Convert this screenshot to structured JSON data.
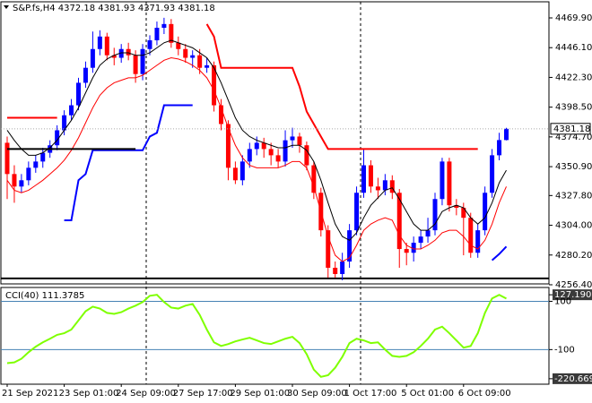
{
  "chart_data": {
    "type": "candlestick",
    "title": "S&P.fs,H4  4372.18 4381.93 4371.93 4381.18",
    "categories": [
      "21 Sep 2021",
      null,
      null,
      null,
      null,
      null,
      null,
      null,
      "23 Sep 01:00",
      null,
      null,
      null,
      null,
      null,
      null,
      null,
      "24 Sep 09:00",
      null,
      null,
      null,
      null,
      null,
      null,
      null,
      "27 Sep 17:00",
      null,
      null,
      null,
      null,
      null,
      null,
      null,
      "29 Sep 01:00",
      null,
      null,
      null,
      null,
      null,
      null,
      null,
      "30 Sep 09:00",
      null,
      null,
      null,
      null,
      null,
      null,
      null,
      "1 Oct 17:00",
      null,
      null,
      null,
      null,
      null,
      null,
      null,
      "5 Oct 01:00",
      null,
      null,
      null,
      null,
      null,
      null,
      null,
      "6 Oct 09:00",
      null,
      null,
      null,
      null,
      null,
      null
    ],
    "open": [
      4370,
      4345,
      4335,
      4340,
      4350,
      4355,
      4362,
      4368,
      4380,
      4392,
      4400,
      4418,
      4430,
      4445,
      4455,
      4440,
      4438,
      4445,
      4440,
      4425,
      4445,
      4452,
      4462,
      4465,
      4450,
      4445,
      4438,
      4440,
      4430,
      4432,
      4400,
      4385,
      4350,
      4340,
      4355,
      4365,
      4370,
      4365,
      4360,
      4355,
      4372,
      4375,
      4368,
      4352,
      4330,
      4300,
      4270,
      4265,
      4275,
      4300,
      4330,
      4352,
      4335,
      4332,
      4340,
      4330,
      4285,
      4282,
      4290,
      4295,
      4300,
      4325,
      4355,
      4320,
      4318,
      4310,
      4282,
      4300,
      4330,
      4360,
      4372.18
    ],
    "high": [
      4375,
      4352,
      4345,
      4355,
      4360,
      4366,
      4372,
      4384,
      4396,
      4405,
      4422,
      4435,
      4459,
      4460,
      4458,
      4446,
      4449,
      4450,
      4444,
      4449,
      4456,
      4467,
      4470,
      4469,
      4455,
      4449,
      4444,
      4445,
      4438,
      4435,
      4405,
      4388,
      4355,
      4360,
      4370,
      4375,
      4374,
      4370,
      4365,
      4380,
      4382,
      4378,
      4371,
      4355,
      4334,
      4304,
      4275,
      4282,
      4305,
      4335,
      4365,
      4356,
      4342,
      4345,
      4344,
      4333,
      4290,
      4295,
      4300,
      4310,
      4330,
      4358,
      4358,
      4325,
      4322,
      4314,
      4305,
      4335,
      4365,
      4378,
      4381.93
    ],
    "low": [
      4325,
      4322,
      4330,
      4336,
      4346,
      4350,
      4358,
      4364,
      4376,
      4388,
      4396,
      4414,
      4426,
      4440,
      4436,
      4432,
      4434,
      4436,
      4418,
      4420,
      4440,
      4448,
      4457,
      4446,
      4440,
      4434,
      4430,
      4425,
      4426,
      4395,
      4380,
      4340,
      4337,
      4336,
      4350,
      4360,
      4358,
      4352,
      4350,
      4351,
      4366,
      4362,
      4348,
      4325,
      4295,
      4262,
      4262,
      4260,
      4270,
      4296,
      4326,
      4330,
      4325,
      4328,
      4325,
      4270,
      4272,
      4275,
      4285,
      4290,
      4296,
      4320,
      4315,
      4312,
      4280,
      4278,
      4278,
      4296,
      4326,
      4356,
      4371.93
    ],
    "close": [
      4345,
      4335,
      4340,
      4350,
      4355,
      4362,
      4368,
      4380,
      4392,
      4400,
      4418,
      4430,
      4445,
      4455,
      4440,
      4438,
      4445,
      4440,
      4425,
      4445,
      4452,
      4462,
      4465,
      4450,
      4445,
      4438,
      4440,
      4430,
      4432,
      4400,
      4385,
      4350,
      4340,
      4355,
      4365,
      4370,
      4365,
      4360,
      4355,
      4372,
      4375,
      4368,
      4352,
      4330,
      4300,
      4270,
      4265,
      4275,
      4300,
      4330,
      4352,
      4335,
      4332,
      4340,
      4330,
      4285,
      4282,
      4290,
      4295,
      4300,
      4325,
      4355,
      4320,
      4318,
      4310,
      4282,
      4300,
      4330,
      4360,
      4372.18,
      4381.18
    ],
    "up_color": "#0000ff",
    "down_color": "#ff0000",
    "lines": [
      {
        "color": "#000000",
        "values": [
          4380,
          4372,
          4365,
          4360,
          4360,
          4362,
          4366,
          4372,
          4380,
          4388,
          4398,
          4410,
          4422,
          4432,
          4437,
          4440,
          4442,
          4442,
          4440,
          4440,
          4442,
          4446,
          4450,
          4452,
          4450,
          4448,
          4446,
          4442,
          4438,
          4430,
          4418,
          4404,
          4390,
          4380,
          4375,
          4372,
          4370,
          4368,
          4366,
          4366,
          4368,
          4368,
          4364,
          4355,
          4340,
          4322,
          4305,
          4295,
          4292,
          4298,
          4310,
          4320,
          4326,
          4332,
          4334,
          4325,
          4315,
          4305,
          4300,
          4300,
          4305,
          4315,
          4318,
          4320,
          4318,
          4310,
          4305,
          4310,
          4322,
          4338,
          4348
        ]
      },
      {
        "color": "#ff0000",
        "values": [
          4340,
          4332,
          4330,
          4332,
          4336,
          4340,
          4345,
          4350,
          4356,
          4364,
          4374,
          4386,
          4398,
          4408,
          4414,
          4418,
          4420,
          4422,
          4422,
          4424,
          4428,
          4432,
          4436,
          4438,
          4437,
          4435,
          4432,
          4428,
          4422,
          4412,
          4398,
          4382,
          4368,
          4358,
          4352,
          4350,
          4350,
          4350,
          4350,
          4352,
          4355,
          4355,
          4350,
          4335,
          4315,
          4295,
          4280,
          4275,
          4278,
          4288,
          4300,
          4305,
          4308,
          4310,
          4308,
          4296,
          4288,
          4285,
          4285,
          4288,
          4292,
          4298,
          4300,
          4300,
          4295,
          4288,
          4285,
          4292,
          4305,
          4322,
          4335
        ]
      },
      {
        "color": "#ff0000",
        "width": 2,
        "values": [
          4390,
          4390,
          4390,
          4390,
          4390,
          4390,
          4390,
          4390,
          null,
          null,
          null,
          null,
          null,
          null,
          null,
          null,
          null,
          null,
          null,
          null,
          null,
          null,
          null,
          null,
          null,
          null,
          null,
          null,
          4465,
          4455,
          4430,
          4430,
          4430,
          4430,
          4430,
          4430,
          4430,
          4430,
          4430,
          4430,
          4430,
          4415,
          4395,
          4385,
          4375,
          4365,
          4365,
          4365,
          4365,
          4365,
          4365,
          4365,
          4365,
          4365,
          4365,
          4365,
          4365,
          4365,
          4365,
          4365,
          4365,
          4365,
          4365,
          4365,
          4365,
          4365,
          4365,
          null,
          null,
          null,
          null
        ]
      },
      {
        "color": "#0000ff",
        "width": 2,
        "values": [
          null,
          null,
          null,
          null,
          null,
          null,
          null,
          null,
          4308,
          4308,
          4340,
          4345,
          4364,
          4364,
          4364,
          4364,
          4364,
          4364,
          4364,
          4364,
          4375,
          4378,
          4400,
          4400,
          4400,
          4400,
          4400,
          null,
          null,
          null,
          null,
          null,
          null,
          null,
          null,
          null,
          null,
          null,
          null,
          null,
          null,
          null,
          null,
          null,
          null,
          null,
          null,
          null,
          null,
          null,
          null,
          null,
          null,
          null,
          null,
          null,
          null,
          null,
          null,
          null,
          null,
          null,
          null,
          null,
          null,
          null,
          null,
          null,
          4276,
          4281,
          4287
        ]
      },
      {
        "color": "#000000",
        "width": 2,
        "values": [
          4365,
          4365,
          4365,
          4365,
          4365,
          4365,
          4365,
          4365,
          4365,
          4365,
          4365,
          4365,
          4365,
          4365,
          4365,
          4365,
          4365,
          4365,
          4365,
          null,
          null,
          null,
          null,
          null,
          null,
          null,
          null,
          null,
          null,
          null,
          null,
          null,
          null,
          null,
          null,
          null,
          null,
          null,
          null,
          null,
          null,
          null,
          null,
          null,
          null,
          null,
          null,
          null,
          null,
          null,
          null,
          null,
          null,
          null,
          null,
          null,
          null,
          null,
          null,
          null,
          null,
          null,
          null,
          null,
          null,
          null,
          null,
          null,
          null,
          null,
          null
        ]
      }
    ],
    "hline": 4261.5,
    "ylim": [
      4257.1,
      4482.8
    ],
    "yticks": [
      {
        "value": 4469.9,
        "label": "4469.90"
      },
      {
        "value": 4446.1,
        "label": "4446.10"
      },
      {
        "value": 4422.3,
        "label": "4422.30"
      },
      {
        "value": 4398.5,
        "label": "4398.50"
      },
      {
        "value": 4374.7,
        "label": "4374.70"
      },
      {
        "value": 4350.9,
        "label": "4350.90"
      },
      {
        "value": 4327.8,
        "label": "4327.80"
      },
      {
        "value": 4304,
        "label": "4304.00"
      },
      {
        "value": 4280.2,
        "label": "4280.20"
      },
      {
        "value": 4256.4,
        "label": "4256.40"
      }
    ],
    "grid": false,
    "indicator": {
      "label": "CCI(40) 111.3785",
      "color": "#7fff00",
      "values": [
        -156,
        -153,
        -138,
        -111,
        -88,
        -70,
        -55,
        -39,
        -32,
        -17,
        21,
        59,
        78,
        70,
        52,
        48,
        55,
        70,
        82,
        97,
        123,
        127,
        97,
        74,
        70,
        82,
        89,
        44,
        -17,
        -70,
        -85,
        -77,
        -66,
        -58,
        -51,
        -62,
        -73,
        -77,
        -66,
        -55,
        -47,
        -73,
        -119,
        -183,
        -213,
        -206,
        -175,
        -130,
        -73,
        -55,
        -62,
        -73,
        -70,
        -100,
        -126,
        -130,
        -126,
        -111,
        -85,
        -55,
        -17,
        -5,
        -32,
        -62,
        -92,
        -85,
        -32,
        52,
        112,
        127,
        111.3785
      ],
      "ylim": [
        -243.4,
        157.4
      ],
      "yticks": [
        127.1903,
        100,
        -100,
        -220.6694
      ],
      "levels": [
        100,
        -100
      ]
    }
  }
}
